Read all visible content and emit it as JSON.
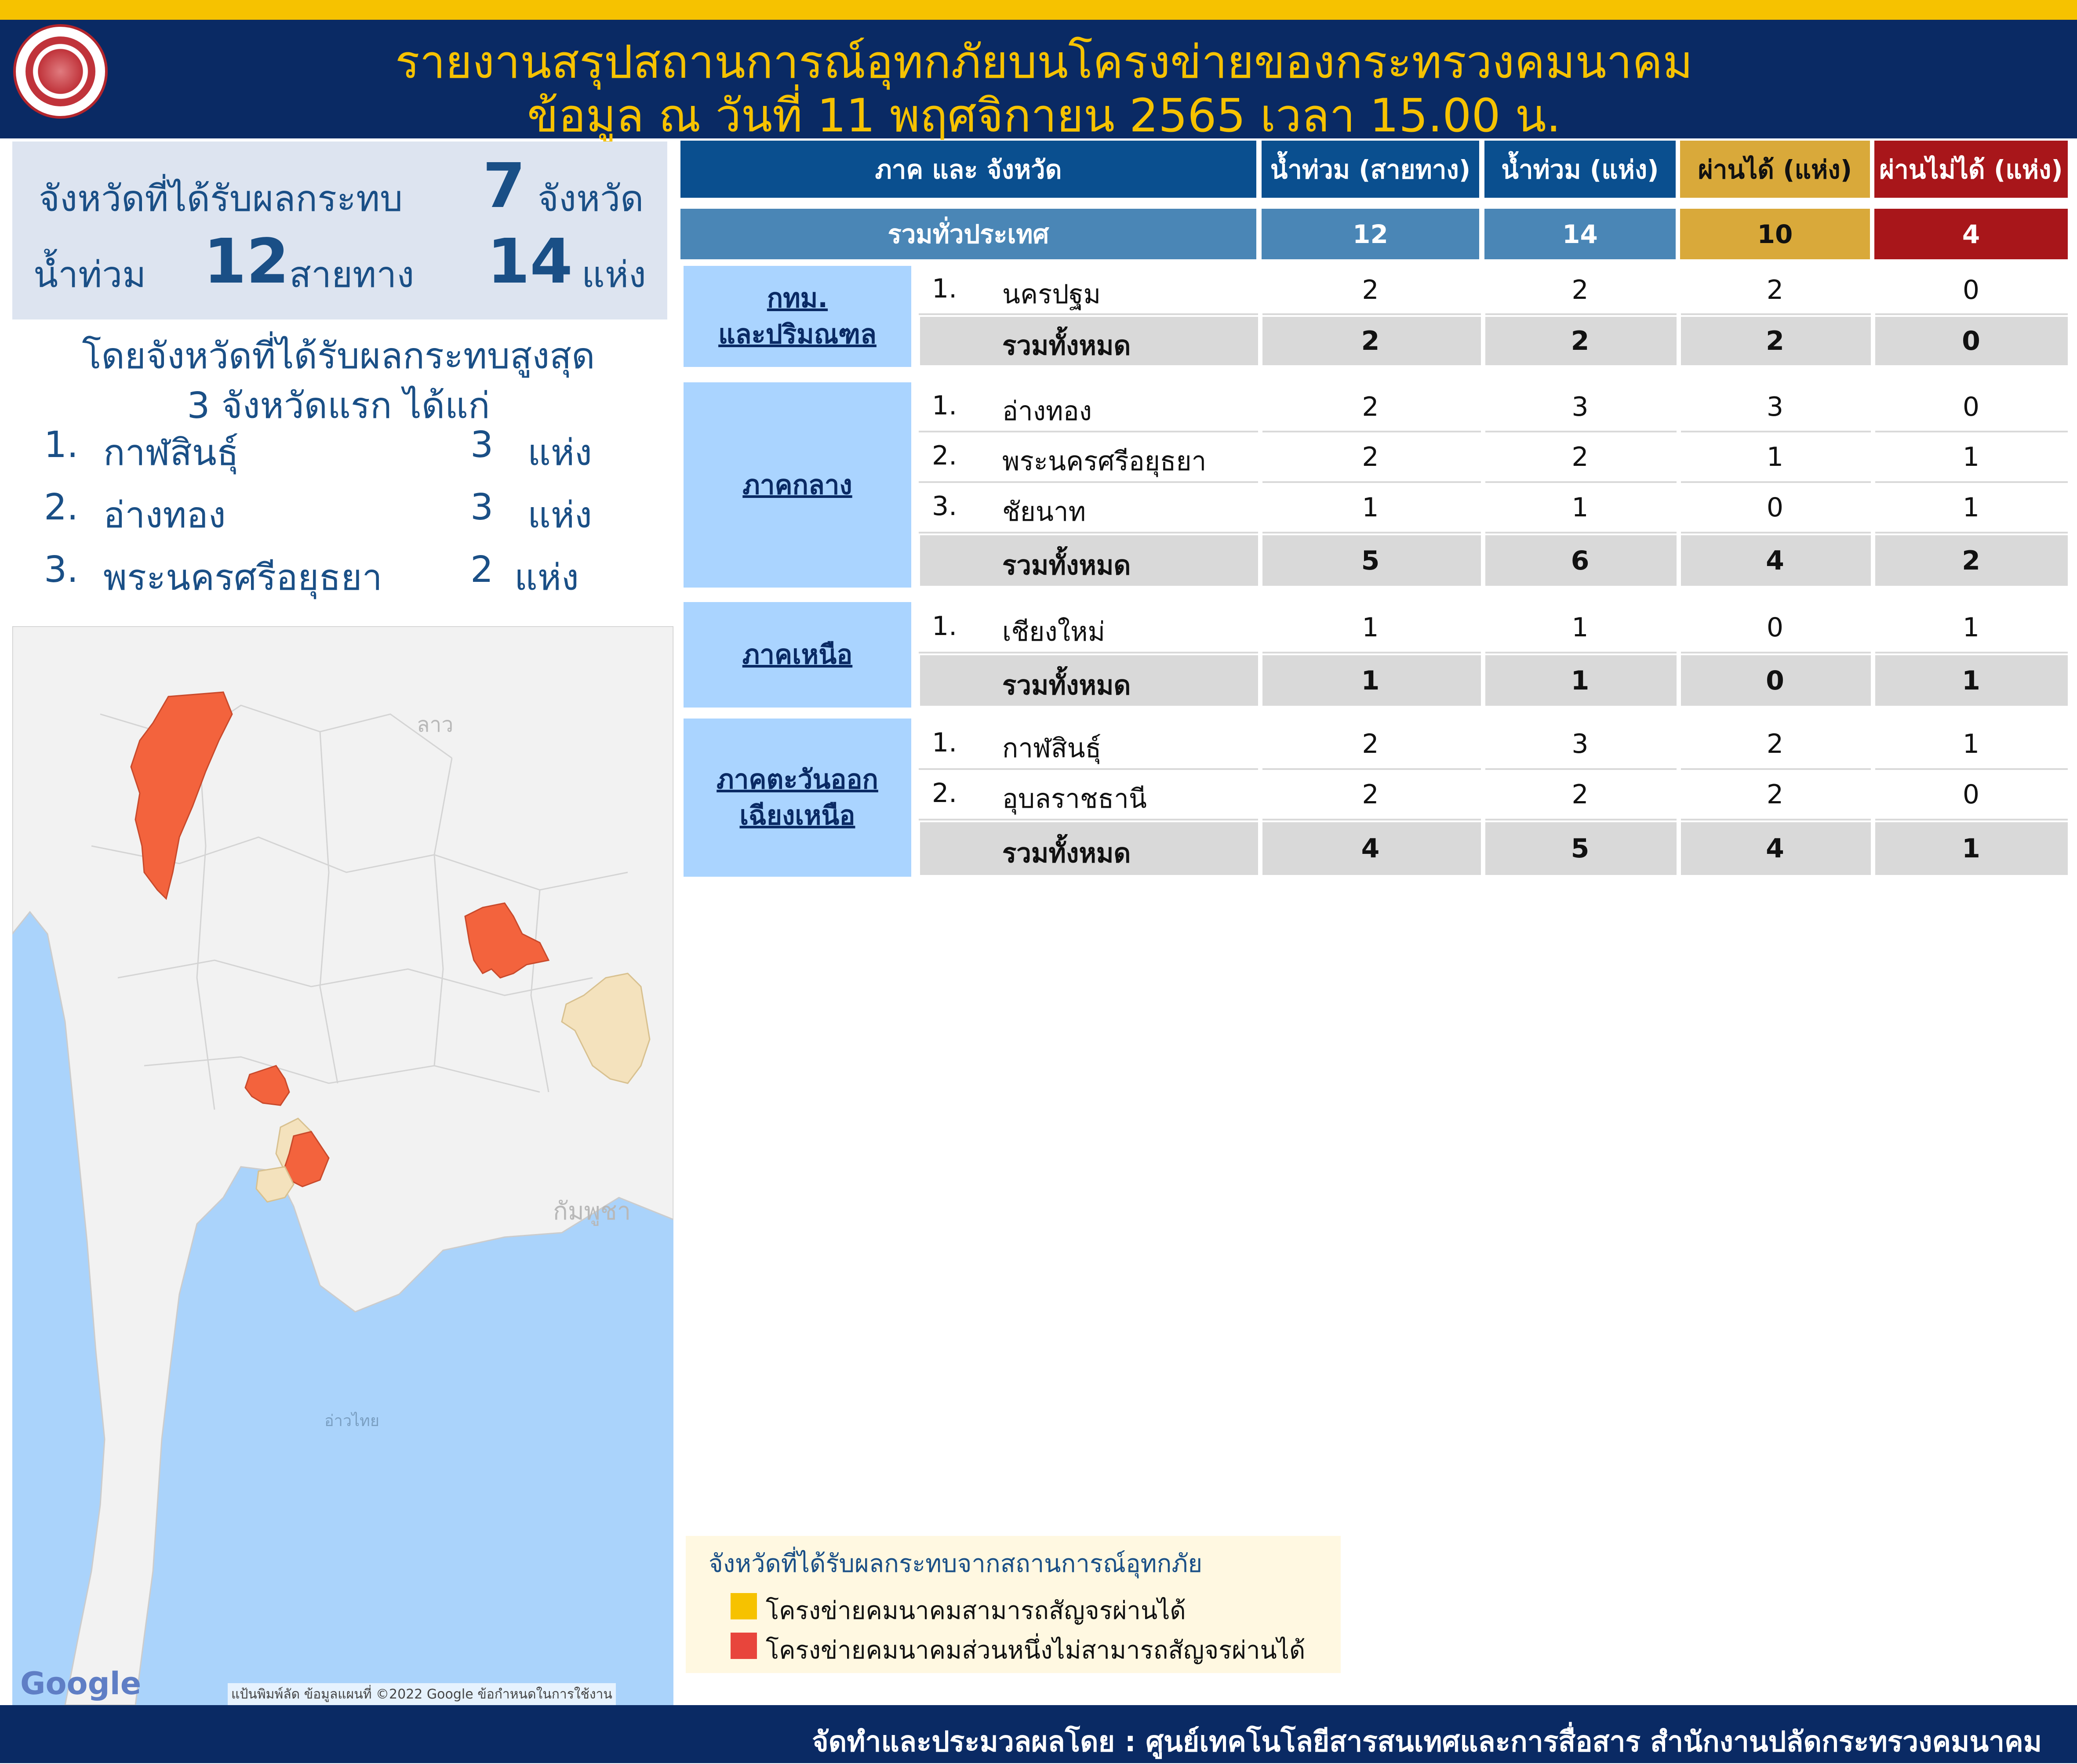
{
  "header": {
    "title_line1": "รายงานสรุปสถานการณ์อุทกภัยบนโครงข่ายของกระทรวงคมนาคม",
    "title_line2": "ข้อมูล ณ วันที่ 11 พฤศจิกายน 2565 เวลา 15.00 น."
  },
  "summary": {
    "affected_label": "จังหวัดที่ได้รับผลกระทบ",
    "affected_count": "7",
    "affected_unit": "จังหวัด",
    "flood_label": "น้ำท่วม",
    "routes_count": "12",
    "routes_unit": "สายทาง",
    "sites_count": "14",
    "sites_unit": "แห่ง"
  },
  "top3": {
    "heading_line1": "โดยจังหวัดที่ได้รับผลกระทบสูงสุด",
    "heading_line2": "3 จังหวัดแรก ได้แก่",
    "items": [
      {
        "idx": "1.",
        "name": "กาฬสินธุ์",
        "count": "3",
        "unit": "แห่ง"
      },
      {
        "idx": "2.",
        "name": "อ่างทอง",
        "count": "3",
        "unit": "แห่ง"
      },
      {
        "idx": "3.",
        "name": "พระนครศรีอยุธยา",
        "count": "2",
        "unit": "แห่ง"
      }
    ]
  },
  "table": {
    "headers": {
      "region": "ภาค และ จังหวัด",
      "routes": "น้ำท่วม (สายทาง)",
      "sites": "น้ำท่วม (แห่ง)",
      "passable": "ผ่านได้ (แห่ง)",
      "impassable": "ผ่านไม่ได้ (แห่ง)"
    },
    "national": {
      "label": "รวมทั่วประเทศ",
      "routes": "12",
      "sites": "14",
      "passable": "10",
      "impassable": "4"
    },
    "total_label": "รวมทั้งหมด",
    "regions": [
      {
        "name_lines": [
          "กทม.",
          "และปริมณฑล"
        ],
        "rows": [
          {
            "idx": "1.",
            "province": "นครปฐม",
            "routes": "2",
            "sites": "2",
            "passable": "2",
            "impassable": "0"
          }
        ],
        "total": {
          "routes": "2",
          "sites": "2",
          "passable": "2",
          "impassable": "0"
        }
      },
      {
        "name_lines": [
          "ภาคกลาง"
        ],
        "rows": [
          {
            "idx": "1.",
            "province": "อ่างทอง",
            "routes": "2",
            "sites": "3",
            "passable": "3",
            "impassable": "0"
          },
          {
            "idx": "2.",
            "province": "พระนครศรีอยุธยา",
            "routes": "2",
            "sites": "2",
            "passable": "1",
            "impassable": "1"
          },
          {
            "idx": "3.",
            "province": "ชัยนาท",
            "routes": "1",
            "sites": "1",
            "passable": "0",
            "impassable": "1"
          }
        ],
        "total": {
          "routes": "5",
          "sites": "6",
          "passable": "4",
          "impassable": "2"
        }
      },
      {
        "name_lines": [
          "ภาคเหนือ"
        ],
        "rows": [
          {
            "idx": "1.",
            "province": "เชียงใหม่",
            "routes": "1",
            "sites": "1",
            "passable": "0",
            "impassable": "1"
          }
        ],
        "total": {
          "routes": "1",
          "sites": "1",
          "passable": "0",
          "impassable": "1"
        }
      },
      {
        "name_lines": [
          "ภาคตะวันออก",
          "เฉียงเหนือ"
        ],
        "rows": [
          {
            "idx": "1.",
            "province": "กาฬสินธุ์",
            "routes": "2",
            "sites": "3",
            "passable": "2",
            "impassable": "1"
          },
          {
            "idx": "2.",
            "province": "อุบลราชธานี",
            "routes": "2",
            "sites": "2",
            "passable": "2",
            "impassable": "0"
          }
        ],
        "total": {
          "routes": "4",
          "sites": "5",
          "passable": "4",
          "impassable": "1"
        }
      }
    ]
  },
  "map": {
    "brand": "Google",
    "copyright": "แป้นพิมพ์ลัด  ข้อมูลแผนที่ ©2022 Google  ข้อกำหนดในการใช้งาน",
    "labels": {
      "laos": "ลาว",
      "cambodia": "กัมพูชา",
      "gulf": "อ่าวไทย"
    }
  },
  "legend": {
    "title": "จังหวัดที่ได้รับผลกระทบจากสถานการณ์อุทกภัย",
    "passable": "โครงข่ายคมนาคมสามารถสัญจรผ่านได้",
    "partial": "โครงข่ายคมนาคมส่วนหนึ่งไม่สามารถสัญจรผ่านได้",
    "colors": {
      "passable": "#f6c200",
      "partial": "#e8453c"
    }
  },
  "footer": {
    "credit": "จัดทำและประมวลผลโดย : ศูนย์เทคโนโลยีสารสนเทศและการสื่อสาร สำนักงานปลัดกระทรวงคมนาคม"
  }
}
